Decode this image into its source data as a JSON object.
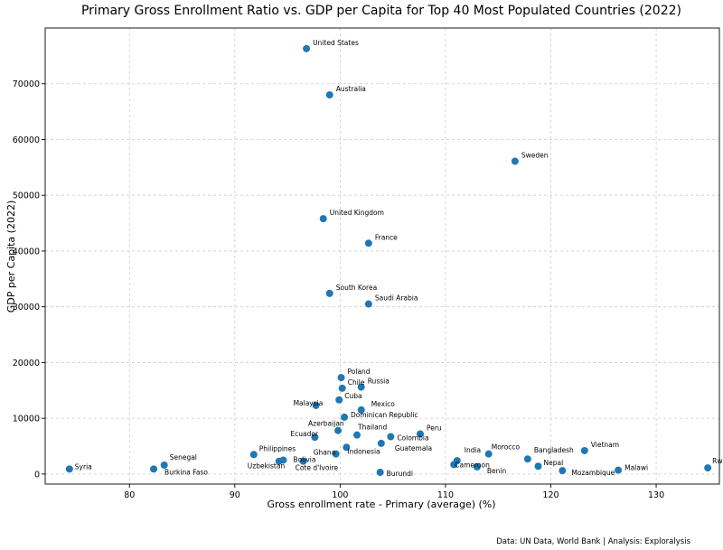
{
  "chart_data": {
    "type": "scatter",
    "title": "Primary Gross Enrollment Ratio vs. GDP per Capita for Top 40 Most Populated Countries (2022)",
    "xlabel": "Gross enrollment rate - Primary (average) (%)",
    "ylabel": "GDP per Capita (2022)",
    "xlim": [
      72,
      136
    ],
    "ylim": [
      -1800,
      80000
    ],
    "xticks": [
      80,
      90,
      100,
      110,
      120,
      130
    ],
    "yticks": [
      0,
      10000,
      20000,
      30000,
      40000,
      50000,
      60000,
      70000
    ],
    "grid": true,
    "point_color": "#1f77b4",
    "source": "Data: UN Data, World Bank | Analysis: Exploralysis",
    "points": [
      {
        "label": "United States",
        "x": 96.8,
        "y": 76300
      },
      {
        "label": "Australia",
        "x": 99.0,
        "y": 68000
      },
      {
        "label": "Sweden",
        "x": 116.6,
        "y": 56100
      },
      {
        "label": "United Kingdom",
        "x": 98.4,
        "y": 45800
      },
      {
        "label": "France",
        "x": 102.7,
        "y": 41400
      },
      {
        "label": "South Korea",
        "x": 99.0,
        "y": 32400
      },
      {
        "label": "Saudi Arabia",
        "x": 102.7,
        "y": 30500
      },
      {
        "label": "Poland",
        "x": 100.1,
        "y": 17300
      },
      {
        "label": "Russia",
        "x": 102.0,
        "y": 15600
      },
      {
        "label": "Chile",
        "x": 100.2,
        "y": 15400
      },
      {
        "label": "Cuba",
        "x": 99.9,
        "y": 13300
      },
      {
        "label": "Malaysia",
        "x": 97.7,
        "y": 12300
      },
      {
        "label": "Mexico",
        "x": 102.0,
        "y": 11500
      },
      {
        "label": "Dominican Republic",
        "x": 100.4,
        "y": 10200
      },
      {
        "label": "Azerbaijan",
        "x": 99.8,
        "y": 7800
      },
      {
        "label": "Thailand",
        "x": 101.6,
        "y": 7000
      },
      {
        "label": "Peru",
        "x": 107.6,
        "y": 7200
      },
      {
        "label": "Ecuador",
        "x": 97.6,
        "y": 6600
      },
      {
        "label": "Colombia",
        "x": 104.8,
        "y": 6700
      },
      {
        "label": "Guatemala",
        "x": 103.9,
        "y": 5500
      },
      {
        "label": "Indonesia",
        "x": 100.6,
        "y": 4800
      },
      {
        "label": "Morocco",
        "x": 114.1,
        "y": 3600
      },
      {
        "label": "Philippines",
        "x": 91.8,
        "y": 3500
      },
      {
        "label": "Ghana",
        "x": 99.6,
        "y": 3600
      },
      {
        "label": "Vietnam",
        "x": 123.2,
        "y": 4200
      },
      {
        "label": "India",
        "x": 111.1,
        "y": 2400
      },
      {
        "label": "Bangladesh",
        "x": 117.8,
        "y": 2700
      },
      {
        "label": "Uzbekistan",
        "x": 94.2,
        "y": 2300
      },
      {
        "label": "Bolivia",
        "x": 94.6,
        "y": 2500
      },
      {
        "label": "Cote d'Ivoire",
        "x": 96.5,
        "y": 2300
      },
      {
        "label": "Cameroon",
        "x": 110.8,
        "y": 1700
      },
      {
        "label": "Senegal",
        "x": 83.3,
        "y": 1600
      },
      {
        "label": "Nepal",
        "x": 118.8,
        "y": 1400
      },
      {
        "label": "Benin",
        "x": 113.0,
        "y": 1300
      },
      {
        "label": "Rwanda",
        "x": 134.9,
        "y": 1100
      },
      {
        "label": "Syria",
        "x": 74.3,
        "y": 900
      },
      {
        "label": "Burkina Faso",
        "x": 82.3,
        "y": 900
      },
      {
        "label": "Malawi",
        "x": 126.4,
        "y": 700
      },
      {
        "label": "Mozambique",
        "x": 121.1,
        "y": 600
      },
      {
        "label": "Burundi",
        "x": 103.8,
        "y": 300
      }
    ]
  }
}
